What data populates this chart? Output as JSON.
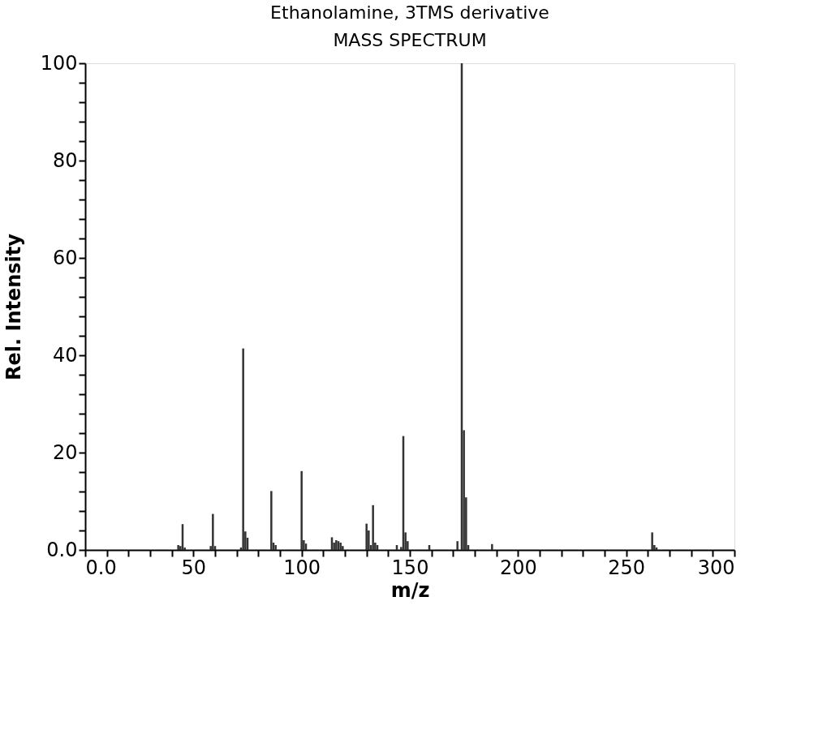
{
  "chart_data": {
    "type": "bar",
    "title": "Ethanolamine, 3TMS derivative",
    "subtitle": "MASS SPECTRUM",
    "xlabel": "m/z",
    "ylabel": "Rel. Intensity",
    "x": [
      43,
      44,
      45,
      46,
      58,
      59,
      60,
      72,
      73,
      74,
      75,
      86,
      87,
      88,
      100,
      101,
      102,
      114,
      115,
      116,
      117,
      118,
      119,
      130,
      131,
      132,
      133,
      134,
      135,
      144,
      146,
      147,
      148,
      149,
      159,
      172,
      174,
      175,
      176,
      177,
      188,
      262,
      263,
      264
    ],
    "values": [
      1,
      0.8,
      5.3,
      0.5,
      0.8,
      7.4,
      0.8,
      0.5,
      41.4,
      3.8,
      2.5,
      12.1,
      1.5,
      1,
      16.2,
      2,
      1.3,
      2.6,
      1.5,
      2,
      1.8,
      1.5,
      0.8,
      5.4,
      4,
      1,
      9.2,
      1.5,
      1,
      1,
      0.6,
      23.4,
      3.6,
      1.8,
      1,
      1.8,
      100,
      24.6,
      10.8,
      1,
      1.2,
      3.6,
      1,
      0.5
    ],
    "color": "#333333",
    "xlim": [
      0,
      300
    ],
    "ylim": [
      0,
      100
    ],
    "xticks": [
      {
        "value": 0,
        "label": "0.0"
      },
      {
        "value": 10,
        "label": null
      },
      {
        "value": 20,
        "label": null
      },
      {
        "value": 30,
        "label": null
      },
      {
        "value": 40,
        "label": null
      },
      50,
      {
        "value": 60,
        "label": null
      },
      {
        "value": 70,
        "label": null
      },
      {
        "value": 80,
        "label": null
      },
      {
        "value": 90,
        "label": null
      },
      100,
      {
        "value": 110,
        "label": null
      },
      {
        "value": 120,
        "label": null
      },
      {
        "value": 130,
        "label": null
      },
      {
        "value": 140,
        "label": null
      },
      150,
      {
        "value": 160,
        "label": null
      },
      {
        "value": 170,
        "label": null
      },
      {
        "value": 180,
        "label": null
      },
      {
        "value": 190,
        "label": null
      },
      200,
      {
        "value": 210,
        "label": null
      },
      {
        "value": 220,
        "label": null
      },
      {
        "value": 230,
        "label": null
      },
      {
        "value": 240,
        "label": null
      },
      250,
      {
        "value": 260,
        "label": null
      },
      {
        "value": 270,
        "label": null
      },
      {
        "value": 280,
        "label": null
      },
      {
        "value": 290,
        "label": null
      },
      300
    ],
    "yticks": [
      {
        "value": 0,
        "label": "0.0"
      },
      {
        "value": 4,
        "label": null
      },
      {
        "value": 8,
        "label": null
      },
      {
        "value": 12,
        "label": null
      },
      {
        "value": 16,
        "label": null
      },
      20,
      {
        "value": 24,
        "label": null
      },
      {
        "value": 28,
        "label": null
      },
      {
        "value": 32,
        "label": null
      },
      {
        "value": 36,
        "label": null
      },
      40,
      {
        "value": 44,
        "label": null
      },
      {
        "value": 48,
        "label": null
      },
      {
        "value": 52,
        "label": null
      },
      {
        "value": 56,
        "label": null
      },
      60,
      {
        "value": 64,
        "label": null
      },
      {
        "value": 68,
        "label": null
      },
      {
        "value": 72,
        "label": null
      },
      {
        "value": 76,
        "label": null
      },
      80,
      {
        "value": 84,
        "label": null
      },
      {
        "value": 88,
        "label": null
      },
      {
        "value": 92,
        "label": null
      },
      {
        "value": 96,
        "label": null
      },
      100
    ],
    "grid": false
  }
}
